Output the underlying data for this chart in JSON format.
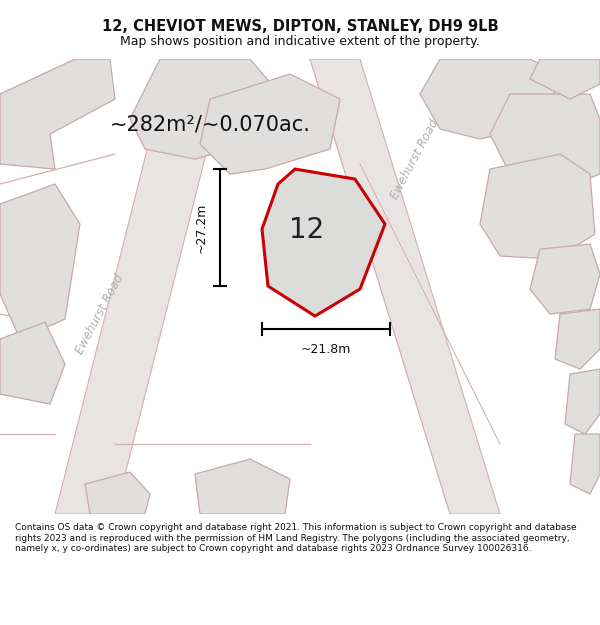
{
  "title": "12, CHEVIOT MEWS, DIPTON, STANLEY, DH9 9LB",
  "subtitle": "Map shows position and indicative extent of the property.",
  "area_text": "~282m²/~0.070ac.",
  "dim_width": "~21.8m",
  "dim_height": "~27.2m",
  "label_12": "12",
  "road_label_left": "Ewehurst Road",
  "road_label_right": "Ewehurst Road",
  "footer_text": "Contains OS data © Crown copyright and database right 2021. This information is subject to Crown copyright and database rights 2023 and is reproduced with the permission of HM Land Registry. The polygons (including the associated geometry, namely x, y co-ordinates) are subject to Crown copyright and database rights 2023 Ordnance Survey 100026316.",
  "fig_bg": "#ffffff",
  "map_bg": "#f0efee",
  "building_fill": "#e0dfde",
  "building_edge": "#c8a8a8",
  "road_fill": "#e8e4e4",
  "road_edge": "#d4b0b0",
  "prop_fill": "#dcdcdb",
  "prop_edge": "#cc0000",
  "dim_color": "#111111",
  "text_color": "#111111",
  "road_label_color": "#b0b0b0",
  "figsize": [
    6.0,
    6.25
  ],
  "dpi": 100,
  "title_fontsize": 10.5,
  "subtitle_fontsize": 9,
  "footer_fontsize": 6.5
}
